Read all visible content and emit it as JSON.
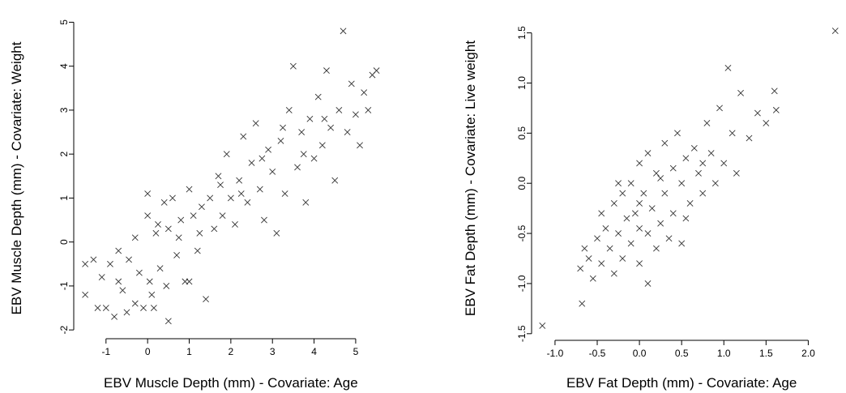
{
  "chart_data": [
    {
      "type": "scatter",
      "xlabel": "EBV Muscle Depth (mm) - Covariate: Age",
      "ylabel": "EBV Muscle Depth (mm) - Covariate: Weight",
      "xlim": [
        -1.6,
        5.8
      ],
      "ylim": [
        -2.2,
        5.1
      ],
      "xticks": [
        "-1",
        "0",
        "1",
        "2",
        "3",
        "4",
        "5"
      ],
      "yticks": [
        "-2",
        "-1",
        "0",
        "1",
        "2",
        "3",
        "4",
        "5"
      ],
      "marker": "x",
      "grid": false,
      "series": [
        {
          "points": [
            [
              -1.5,
              -0.5
            ],
            [
              -1.5,
              -1.2
            ],
            [
              -1.3,
              -0.4
            ],
            [
              -1.2,
              -1.5
            ],
            [
              -1.1,
              -0.8
            ],
            [
              -1.0,
              -1.5
            ],
            [
              -0.9,
              -0.5
            ],
            [
              -0.8,
              -1.7
            ],
            [
              -0.7,
              -0.2
            ],
            [
              -0.6,
              -1.1
            ],
            [
              -0.5,
              -1.6
            ],
            [
              -0.45,
              -0.4
            ],
            [
              -0.3,
              0.1
            ],
            [
              -0.3,
              -1.4
            ],
            [
              -0.2,
              -0.7
            ],
            [
              -0.1,
              -1.5
            ],
            [
              0.0,
              1.1
            ],
            [
              0.0,
              0.6
            ],
            [
              0.05,
              -0.9
            ],
            [
              0.1,
              -1.2
            ],
            [
              0.15,
              -1.5
            ],
            [
              0.2,
              0.2
            ],
            [
              0.3,
              -0.6
            ],
            [
              0.4,
              0.9
            ],
            [
              0.45,
              -1.0
            ],
            [
              0.5,
              -1.8
            ],
            [
              0.5,
              0.3
            ],
            [
              0.6,
              1.0
            ],
            [
              0.7,
              -0.3
            ],
            [
              0.8,
              0.5
            ],
            [
              0.9,
              -0.9
            ],
            [
              1.0,
              1.2
            ],
            [
              1.0,
              -0.9
            ],
            [
              1.1,
              0.6
            ],
            [
              1.2,
              -0.2
            ],
            [
              1.3,
              0.8
            ],
            [
              1.4,
              -1.3
            ],
            [
              1.5,
              1.0
            ],
            [
              1.6,
              0.3
            ],
            [
              1.7,
              1.5
            ],
            [
              1.8,
              0.6
            ],
            [
              1.9,
              2.0
            ],
            [
              2.0,
              1.0
            ],
            [
              2.1,
              0.4
            ],
            [
              2.2,
              1.4
            ],
            [
              2.3,
              2.4
            ],
            [
              2.4,
              0.9
            ],
            [
              2.5,
              1.8
            ],
            [
              2.6,
              2.7
            ],
            [
              2.7,
              1.2
            ],
            [
              2.8,
              0.5
            ],
            [
              2.9,
              2.1
            ],
            [
              3.0,
              1.6
            ],
            [
              3.1,
              0.2
            ],
            [
              3.2,
              2.3
            ],
            [
              3.3,
              1.1
            ],
            [
              3.4,
              3.0
            ],
            [
              3.5,
              4.0
            ],
            [
              3.6,
              1.7
            ],
            [
              3.7,
              2.5
            ],
            [
              3.8,
              0.9
            ],
            [
              3.9,
              2.8
            ],
            [
              4.0,
              1.9
            ],
            [
              4.1,
              3.3
            ],
            [
              4.2,
              2.2
            ],
            [
              4.3,
              3.9
            ],
            [
              4.4,
              2.6
            ],
            [
              4.5,
              1.4
            ],
            [
              4.6,
              3.0
            ],
            [
              4.7,
              4.8
            ],
            [
              4.8,
              2.5
            ],
            [
              4.9,
              3.6
            ],
            [
              5.0,
              2.9
            ],
            [
              5.1,
              2.2
            ],
            [
              5.2,
              3.4
            ],
            [
              5.3,
              3.0
            ],
            [
              5.4,
              3.8
            ],
            [
              5.5,
              3.9
            ],
            [
              -0.7,
              -0.9
            ],
            [
              0.25,
              0.4
            ],
            [
              0.75,
              0.1
            ],
            [
              1.25,
              0.2
            ],
            [
              1.75,
              1.3
            ],
            [
              2.25,
              1.1
            ],
            [
              2.75,
              1.9
            ],
            [
              3.25,
              2.6
            ],
            [
              3.75,
              2.0
            ],
            [
              4.25,
              2.8
            ]
          ]
        }
      ]
    },
    {
      "type": "scatter",
      "xlabel": "EBV Fat Depth (mm) - Covariate: Age",
      "ylabel": "EBV Fat Depth (mm) - Covariate: Live weight",
      "xlim": [
        -1.22,
        2.38
      ],
      "ylim": [
        -1.55,
        1.65
      ],
      "xticks": [
        "-1.0",
        "-0.5",
        "0.0",
        "0.5",
        "1.0",
        "1.5",
        "2.0"
      ],
      "yticks": [
        "-1.5",
        "-1.0",
        "-0.5",
        "0.0",
        "0.5",
        "1.0",
        "1.5"
      ],
      "marker": "x",
      "grid": false,
      "series": [
        {
          "points": [
            [
              -1.15,
              -1.42
            ],
            [
              -0.7,
              -0.85
            ],
            [
              -0.68,
              -1.2
            ],
            [
              -0.65,
              -0.65
            ],
            [
              -0.6,
              -0.75
            ],
            [
              -0.55,
              -0.95
            ],
            [
              -0.5,
              -0.55
            ],
            [
              -0.45,
              -0.3
            ],
            [
              -0.45,
              -0.8
            ],
            [
              -0.4,
              -0.45
            ],
            [
              -0.35,
              -0.65
            ],
            [
              -0.3,
              -0.2
            ],
            [
              -0.3,
              -0.9
            ],
            [
              -0.25,
              -0.5
            ],
            [
              -0.2,
              -0.1
            ],
            [
              -0.2,
              -0.75
            ],
            [
              -0.15,
              -0.35
            ],
            [
              -0.1,
              0.0
            ],
            [
              -0.1,
              -0.6
            ],
            [
              -0.05,
              -0.3
            ],
            [
              0.0,
              0.2
            ],
            [
              0.0,
              -0.8
            ],
            [
              0.0,
              -0.45
            ],
            [
              0.05,
              -0.1
            ],
            [
              0.1,
              0.3
            ],
            [
              0.1,
              -1.0
            ],
            [
              0.1,
              -0.5
            ],
            [
              0.15,
              -0.25
            ],
            [
              0.2,
              0.1
            ],
            [
              0.2,
              -0.65
            ],
            [
              0.25,
              -0.4
            ],
            [
              0.3,
              0.4
            ],
            [
              0.3,
              -0.1
            ],
            [
              0.35,
              -0.55
            ],
            [
              0.4,
              0.15
            ],
            [
              0.4,
              -0.3
            ],
            [
              0.45,
              0.5
            ],
            [
              0.5,
              0.0
            ],
            [
              0.5,
              -0.6
            ],
            [
              0.55,
              0.25
            ],
            [
              0.6,
              -0.2
            ],
            [
              0.65,
              0.35
            ],
            [
              0.7,
              0.1
            ],
            [
              0.75,
              -0.1
            ],
            [
              0.8,
              0.6
            ],
            [
              0.85,
              0.3
            ],
            [
              0.9,
              0.0
            ],
            [
              0.95,
              0.75
            ],
            [
              1.0,
              0.2
            ],
            [
              1.05,
              1.15
            ],
            [
              1.1,
              0.5
            ],
            [
              1.15,
              0.1
            ],
            [
              1.2,
              0.9
            ],
            [
              1.3,
              0.45
            ],
            [
              1.4,
              0.7
            ],
            [
              1.5,
              0.6
            ],
            [
              1.6,
              0.92
            ],
            [
              1.62,
              0.73
            ],
            [
              2.32,
              1.52
            ],
            [
              -0.25,
              0.0
            ],
            [
              0.0,
              -0.2
            ],
            [
              0.25,
              0.05
            ],
            [
              0.55,
              -0.35
            ],
            [
              0.75,
              0.2
            ]
          ]
        }
      ]
    }
  ]
}
